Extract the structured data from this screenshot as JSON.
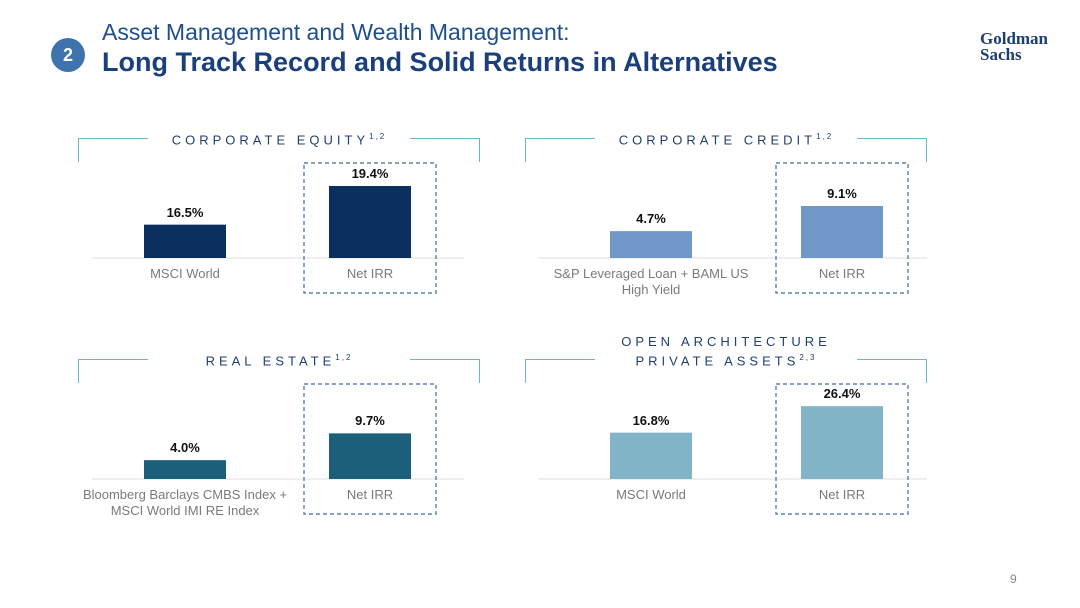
{
  "header": {
    "badge": "2",
    "title": "Asset Management and Wealth Management:",
    "subtitle": "Long Track Record and Solid Returns in Alternatives",
    "logo": [
      "Goldman",
      "Sachs"
    ]
  },
  "chart_data": [
    {
      "type": "bar",
      "title": "CORPORATE EQUITY",
      "title_footnote": "1,2",
      "categories": [
        "MSCI World",
        "Net IRR"
      ],
      "values": [
        16.5,
        19.4
      ],
      "value_labels": [
        "16.5%",
        "19.4%"
      ],
      "color": "#0b2f5f",
      "ylim": [
        14,
        20
      ]
    },
    {
      "type": "bar",
      "title": "CORPORATE CREDIT",
      "title_footnote": "1,2",
      "categories": [
        "S&P Leveraged Loan + BAML US High Yield",
        "Net IRR"
      ],
      "values": [
        4.7,
        9.1
      ],
      "value_labels": [
        "4.7%",
        "9.1%"
      ],
      "color": "#6f98c9",
      "ylim": [
        0,
        14
      ]
    },
    {
      "type": "bar",
      "title": "REAL ESTATE",
      "title_footnote": "1,2",
      "categories": [
        "Bloomberg Barclays CMBS Index + MSCI World IMI RE Index",
        "Net IRR"
      ],
      "values": [
        4.0,
        9.7
      ],
      "value_labels": [
        "4.0%",
        "9.7%"
      ],
      "color": "#1b5f7b",
      "ylim": [
        0,
        17
      ]
    },
    {
      "type": "bar",
      "title": "OPEN ARCHITECTURE PRIVATE ASSETS",
      "title_footnote": "2,3",
      "categories": [
        "MSCI World",
        "Net IRR"
      ],
      "values": [
        16.8,
        26.4
      ],
      "value_labels": [
        "16.8%",
        "26.4%"
      ],
      "color": "#82b4c7",
      "ylim": [
        0,
        29
      ]
    }
  ],
  "footer": {
    "page": "9"
  }
}
